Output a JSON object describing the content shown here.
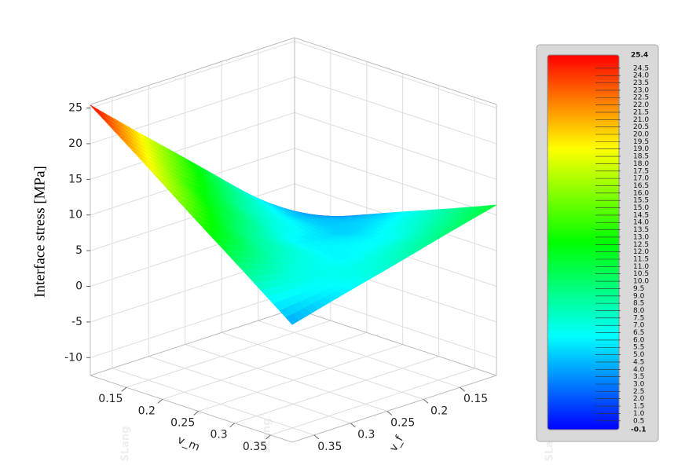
{
  "chart_data": {
    "type": "surface",
    "zlabel": "Interface stress [MPa]",
    "xlabel": "v_m",
    "ylabel": "v_f",
    "x": [
      0.1,
      0.17,
      0.24,
      0.31,
      0.38
    ],
    "y": [
      0.1,
      0.17,
      0.24,
      0.31,
      0.38
    ],
    "z": [
      [
        -0.1,
        6.3,
        12.7,
        19.0,
        25.4
      ],
      [
        2.8,
        5.1,
        8.6,
        13.7,
        20.1
      ],
      [
        5.7,
        5.1,
        6.2,
        9.6,
        14.7
      ],
      [
        8.5,
        6.7,
        6.1,
        7.1,
        9.4
      ],
      [
        11.4,
        9.6,
        7.7,
        5.9,
        4.0
      ]
    ],
    "xlim": [
      0.1,
      0.38
    ],
    "ylim": [
      0.1,
      0.38
    ],
    "zlim": [
      -12.5,
      25.5
    ],
    "xticks": [
      0.15,
      0.2,
      0.25,
      0.3,
      0.35
    ],
    "yticks": [
      0.15,
      0.2,
      0.25,
      0.3,
      0.35
    ],
    "zticks": [
      -10,
      -5,
      0,
      5,
      10,
      15,
      20,
      25
    ],
    "grid": true,
    "colormap": [
      "#0000ff",
      "#00ffff",
      "#00ff00",
      "#ffff00",
      "#ff0000"
    ],
    "colorbar": {
      "min": -0.1,
      "max": 25.4,
      "ticks": [
        0.5,
        {
          "value": 1,
          "label": "1.0"
        },
        1.5,
        {
          "value": 2,
          "label": "2.0"
        },
        2.5,
        {
          "value": 3,
          "label": "3.0"
        },
        3.5,
        {
          "value": 4,
          "label": "4.0"
        },
        4.5,
        {
          "value": 5,
          "label": "5.0"
        },
        5.5,
        {
          "value": 6,
          "label": "6.0"
        },
        6.5,
        {
          "value": 7,
          "label": "7.0"
        },
        7.5,
        {
          "value": 8,
          "label": "8.0"
        },
        8.5,
        {
          "value": 9,
          "label": "9.0"
        },
        9.5,
        {
          "value": 10,
          "label": "10.0"
        },
        10.5,
        {
          "value": 11,
          "label": "11.0"
        },
        11.5,
        {
          "value": 12,
          "label": "12.0"
        },
        12.5,
        {
          "value": 13,
          "label": "13.0"
        },
        13.5,
        {
          "value": 14,
          "label": "14.0"
        },
        14.5,
        {
          "value": 15,
          "label": "15.0"
        },
        15.5,
        {
          "value": 16,
          "label": "16.0"
        },
        16.5,
        {
          "value": 17,
          "label": "17.0"
        },
        17.5,
        {
          "value": 18,
          "label": "18.0"
        },
        18.5,
        {
          "value": 19,
          "label": "19.0"
        },
        19.5,
        {
          "value": 20,
          "label": "20.0"
        },
        20.5,
        {
          "value": 21,
          "label": "21.0"
        },
        21.5,
        {
          "value": 22,
          "label": "22.0"
        },
        22.5,
        {
          "value": 23,
          "label": "23.0"
        },
        23.5,
        {
          "value": 24,
          "label": "24.0"
        },
        24.5
      ]
    }
  },
  "watermark": "SLang"
}
